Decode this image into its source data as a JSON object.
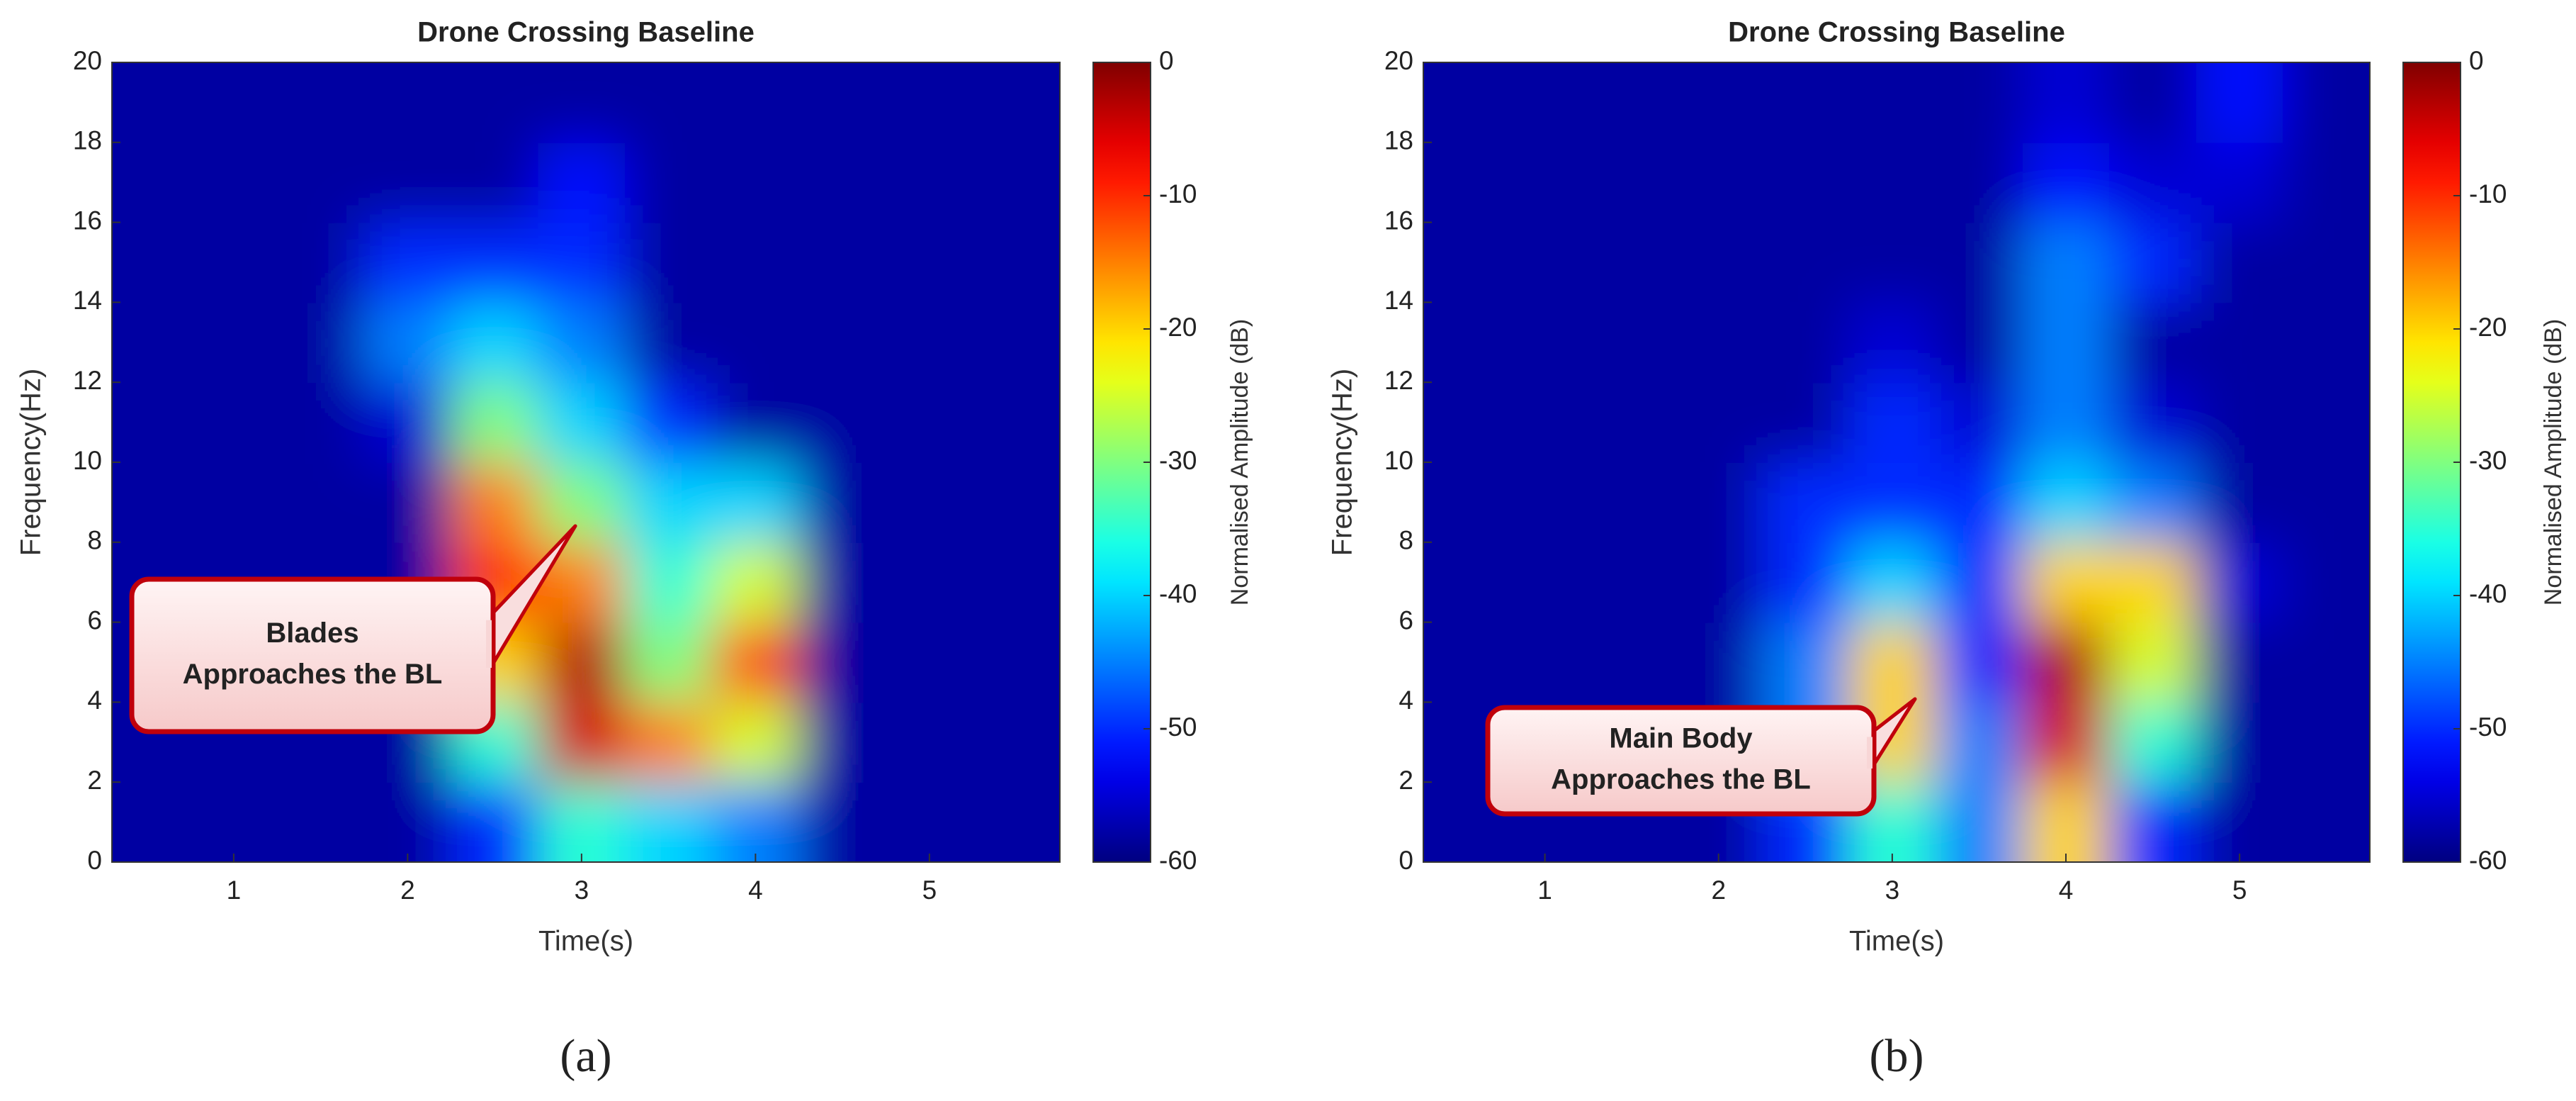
{
  "chart_data": [
    {
      "type": "heatmap",
      "title": "Drone Crossing Baseline",
      "x_label": "Time(s)",
      "y_label": "Frequency(Hz)",
      "colorbar_label": "Normalised Amplitude (dB)",
      "colormap": "jet",
      "panel_label": "(a)",
      "annotation": [
        "Blades",
        "Approaches the BL"
      ],
      "xlim": [
        0.3,
        5.75
      ],
      "xticks": [
        1,
        2,
        3,
        4,
        5
      ],
      "ylim": [
        0,
        20
      ],
      "yticks": [
        0,
        2,
        4,
        6,
        8,
        10,
        12,
        14,
        16,
        18,
        20
      ],
      "clim": [
        -60,
        0
      ],
      "cticks": [
        0,
        -10,
        -20,
        -30,
        -40,
        -50,
        -60
      ],
      "x": [
        0.5,
        1,
        1.5,
        2,
        2.5,
        3,
        3.5,
        4,
        4.5,
        5,
        5.5
      ],
      "y": [
        1,
        3,
        5,
        7,
        9,
        11,
        13,
        15,
        17,
        19
      ],
      "z": [
        [
          -58,
          -58,
          -58,
          -58,
          -50,
          -35,
          -40,
          -45,
          -58,
          -58,
          -58
        ],
        [
          -58,
          -58,
          -58,
          -58,
          -35,
          -5,
          -15,
          -25,
          -58,
          -58,
          -58
        ],
        [
          -58,
          -58,
          -58,
          -58,
          -20,
          -3,
          -30,
          -12,
          -58,
          -58,
          -58
        ],
        [
          -58,
          -58,
          -58,
          -58,
          -10,
          -15,
          -35,
          -25,
          -58,
          -58,
          -58
        ],
        [
          -58,
          -58,
          -58,
          -58,
          -15,
          -30,
          -40,
          -40,
          -58,
          -58,
          -58
        ],
        [
          -58,
          -58,
          -58,
          -55,
          -30,
          -40,
          -50,
          -58,
          -58,
          -58,
          -58
        ],
        [
          -58,
          -58,
          -58,
          -45,
          -40,
          -45,
          -58,
          -58,
          -58,
          -58,
          -58
        ],
        [
          -58,
          -58,
          -58,
          -50,
          -50,
          -50,
          -58,
          -58,
          -58,
          -58,
          -58
        ],
        [
          -58,
          -58,
          -58,
          -58,
          -58,
          -52,
          -58,
          -58,
          -58,
          -58,
          -58
        ],
        [
          -58,
          -58,
          -58,
          -58,
          -58,
          -58,
          -58,
          -58,
          -58,
          -58,
          -58
        ]
      ]
    },
    {
      "type": "heatmap",
      "title": "Drone Crossing Baseline",
      "x_label": "Time(s)",
      "y_label": "Frequency(Hz)",
      "colorbar_label": "Normalised Amplitude (dB)",
      "colormap": "jet",
      "panel_label": "(b)",
      "annotation": [
        "Main Body",
        "Approaches the BL"
      ],
      "xlim": [
        0.3,
        5.75
      ],
      "xticks": [
        1,
        2,
        3,
        4,
        5
      ],
      "ylim": [
        0,
        20
      ],
      "yticks": [
        0,
        2,
        4,
        6,
        8,
        10,
        12,
        14,
        16,
        18,
        20
      ],
      "clim": [
        -60,
        0
      ],
      "cticks": [
        0,
        -10,
        -20,
        -30,
        -40,
        -50,
        -60
      ],
      "x": [
        0.5,
        1,
        1.5,
        2,
        2.5,
        3,
        3.5,
        4,
        4.5,
        5,
        5.5
      ],
      "y": [
        1,
        3,
        5,
        7,
        9,
        11,
        13,
        15,
        17,
        19
      ],
      "z": [
        [
          -58,
          -58,
          -58,
          -58,
          -50,
          -35,
          -45,
          -20,
          -50,
          -58,
          -58
        ],
        [
          -58,
          -58,
          -58,
          -58,
          -45,
          -20,
          -45,
          -5,
          -35,
          -58,
          -58
        ],
        [
          -58,
          -58,
          -58,
          -58,
          -45,
          -20,
          -50,
          -3,
          -25,
          -58,
          -58
        ],
        [
          -58,
          -58,
          -58,
          -58,
          -50,
          -40,
          -50,
          -20,
          -20,
          -55,
          -58
        ],
        [
          -58,
          -58,
          -58,
          -58,
          -50,
          -50,
          -50,
          -40,
          -45,
          -58,
          -58
        ],
        [
          -58,
          -58,
          -58,
          -58,
          -58,
          -50,
          -55,
          -45,
          -55,
          -58,
          -58
        ],
        [
          -58,
          -58,
          -58,
          -58,
          -58,
          -55,
          -58,
          -45,
          -58,
          -58,
          -58
        ],
        [
          -58,
          -58,
          -58,
          -58,
          -58,
          -58,
          -58,
          -45,
          -50,
          -58,
          -58
        ],
        [
          -58,
          -58,
          -58,
          -58,
          -58,
          -58,
          -58,
          -52,
          -55,
          -55,
          -58
        ],
        [
          -58,
          -58,
          -58,
          -58,
          -58,
          -58,
          -58,
          -55,
          -58,
          -52,
          -58
        ]
      ]
    }
  ]
}
